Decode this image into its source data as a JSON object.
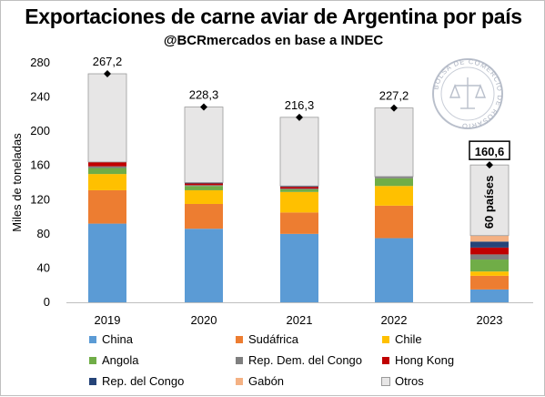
{
  "header": {
    "title": "Exportaciones de carne aviar de Argentina por país",
    "subtitle": "@BCRmercados en base a INDEC"
  },
  "seal": {
    "text": "BOLSA DE COMERCIO DE ROSARIO"
  },
  "chart_data": {
    "type": "bar",
    "stacked": true,
    "ylabel": "Miles de toneladas",
    "ylim": [
      0,
      280
    ],
    "yticks": [
      0,
      40,
      80,
      120,
      160,
      200,
      240,
      280
    ],
    "grid": false,
    "legend_position": "bottom",
    "categories": [
      "2019",
      "2020",
      "2021",
      "2022",
      "2023"
    ],
    "series": [
      {
        "name": "China",
        "color": "#5b9bd5",
        "values": [
          92,
          86,
          80,
          75,
          15
        ]
      },
      {
        "name": "Sudáfrica",
        "color": "#ed7d31",
        "values": [
          39,
          29,
          25,
          38,
          16
        ]
      },
      {
        "name": "Chile",
        "color": "#ffc000",
        "values": [
          19,
          16,
          24,
          23,
          5
        ]
      },
      {
        "name": "Angola",
        "color": "#70ad47",
        "values": [
          7,
          5,
          3,
          9,
          14
        ]
      },
      {
        "name": "Rep. Dem. del Congo",
        "color": "#7f7f7f",
        "values": [
          2,
          1,
          1,
          2,
          6
        ]
      },
      {
        "name": "Hong Kong",
        "color": "#c00000",
        "values": [
          5,
          2,
          2,
          0,
          8
        ]
      },
      {
        "name": "Rep. del Congo",
        "color": "#264478",
        "values": [
          0,
          1,
          1,
          0,
          7
        ]
      },
      {
        "name": "Gabón",
        "color": "#f4b183",
        "values": [
          0,
          0,
          0,
          0,
          7
        ]
      },
      {
        "name": "Otros",
        "color": "#e7e6e6",
        "values": [
          103.2,
          88.3,
          80.3,
          80.2,
          82.6
        ]
      }
    ],
    "totals": [
      267.2,
      228.3,
      216.3,
      227.2,
      160.6
    ],
    "total_labels": [
      "267,2",
      "228,3",
      "216,3",
      "227,2",
      "160,6"
    ],
    "annotation": "60 países"
  }
}
